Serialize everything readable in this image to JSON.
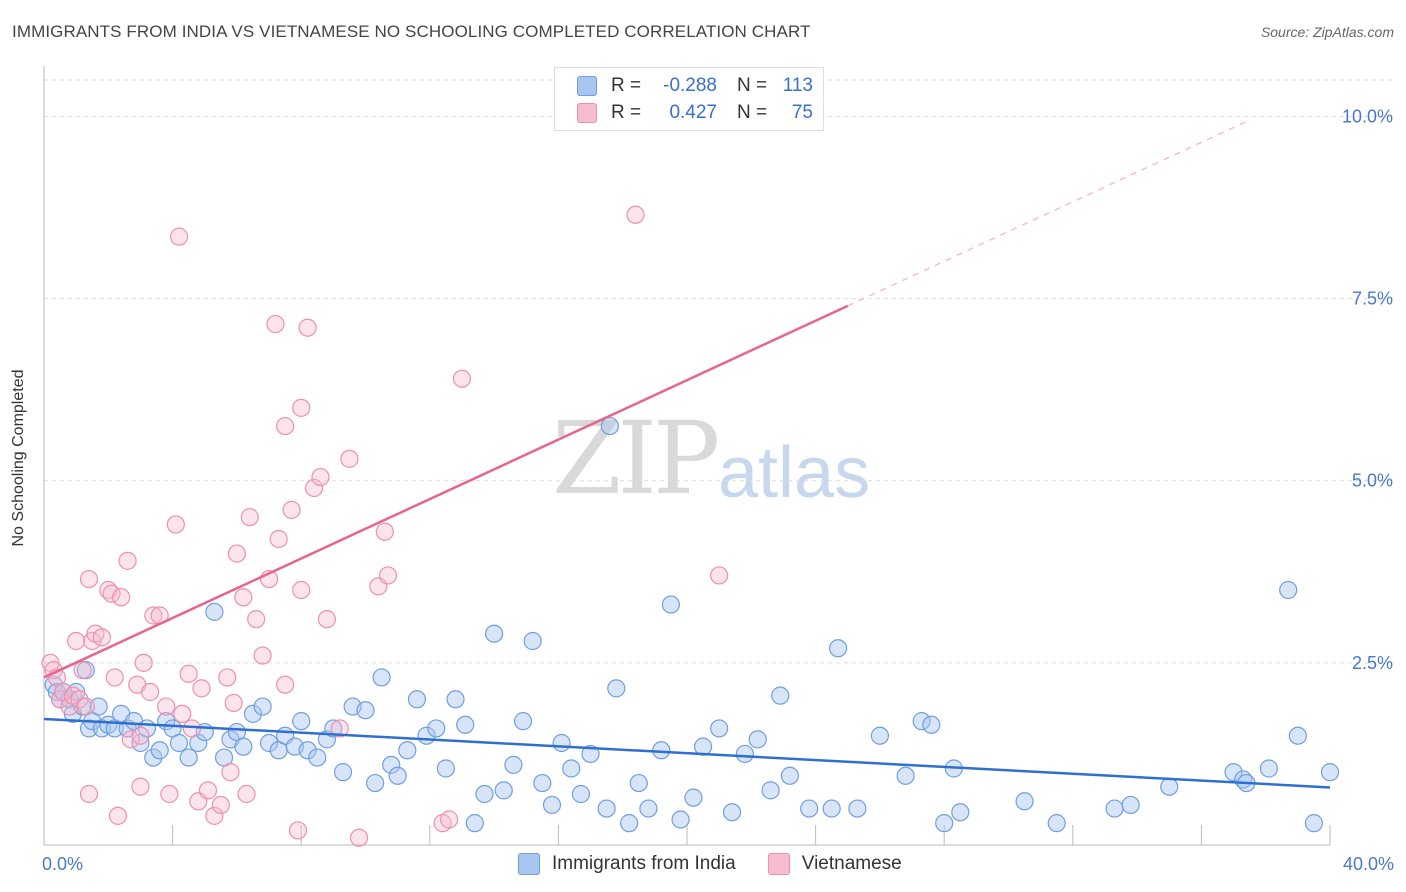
{
  "title": "IMMIGRANTS FROM INDIA VS VIETNAMESE NO SCHOOLING COMPLETED CORRELATION CHART",
  "source": "Source: ZipAtlas.com",
  "watermark": {
    "zip": "ZIP",
    "atlas": "atlas"
  },
  "legend": {
    "rows": [
      {
        "r_label": "R =",
        "r_value": "-0.288",
        "n_label": "N =",
        "n_value": "113"
      },
      {
        "r_label": "R =",
        "r_value": "0.427",
        "n_label": "N =",
        "n_value": "75"
      }
    ]
  },
  "bottom_legend": [
    "Immigrants from India",
    "Vietnamese"
  ],
  "chart_data": {
    "type": "scatter",
    "ylabel": "No Schooling Completed",
    "xlim": [
      0,
      40
    ],
    "ylim": [
      0,
      10.5
    ],
    "x_tick_labels": [
      {
        "v": 0,
        "label": "0.0%"
      },
      {
        "v": 40,
        "label": "40.0%"
      }
    ],
    "y_ticks": [
      {
        "v": 2.5,
        "label": "2.5%"
      },
      {
        "v": 5.0,
        "label": "5.0%"
      },
      {
        "v": 7.5,
        "label": "7.5%"
      },
      {
        "v": 10.0,
        "label": "10.0%"
      }
    ],
    "grid": true,
    "colors": {
      "india_fill": "#a9c6f0",
      "india_stroke": "#6f9fe0",
      "india_line": "#2f6fcf",
      "viet_fill": "#f6bcd0",
      "viet_stroke": "#ee8fb0",
      "viet_line": "#e8648f"
    },
    "series": [
      {
        "name": "Immigrants from India",
        "trend": {
          "x": [
            0,
            40
          ],
          "y": [
            1.73,
            0.79
          ]
        },
        "points": [
          [
            0.3,
            2.2
          ],
          [
            0.4,
            2.1
          ],
          [
            0.5,
            2.0
          ],
          [
            0.6,
            2.1
          ],
          [
            0.8,
            2.0
          ],
          [
            0.9,
            1.8
          ],
          [
            1.0,
            2.1
          ],
          [
            1.2,
            1.9
          ],
          [
            1.3,
            2.4
          ],
          [
            1.4,
            1.6
          ],
          [
            1.5,
            1.7
          ],
          [
            1.7,
            1.9
          ],
          [
            1.8,
            1.6
          ],
          [
            2.0,
            1.65
          ],
          [
            2.2,
            1.6
          ],
          [
            2.4,
            1.8
          ],
          [
            2.6,
            1.6
          ],
          [
            2.8,
            1.7
          ],
          [
            3.0,
            1.4
          ],
          [
            3.2,
            1.6
          ],
          [
            3.4,
            1.2
          ],
          [
            3.6,
            1.3
          ],
          [
            3.8,
            1.7
          ],
          [
            4.0,
            1.6
          ],
          [
            4.2,
            1.4
          ],
          [
            4.5,
            1.2
          ],
          [
            4.8,
            1.4
          ],
          [
            5.0,
            1.55
          ],
          [
            5.3,
            3.2
          ],
          [
            5.6,
            1.2
          ],
          [
            5.8,
            1.45
          ],
          [
            6.0,
            1.55
          ],
          [
            6.2,
            1.35
          ],
          [
            6.5,
            1.8
          ],
          [
            6.8,
            1.9
          ],
          [
            7.0,
            1.4
          ],
          [
            7.3,
            1.3
          ],
          [
            7.5,
            1.5
          ],
          [
            7.8,
            1.35
          ],
          [
            8.0,
            1.7
          ],
          [
            8.2,
            1.3
          ],
          [
            8.5,
            1.2
          ],
          [
            8.8,
            1.45
          ],
          [
            9.0,
            1.6
          ],
          [
            9.3,
            1.0
          ],
          [
            9.6,
            1.9
          ],
          [
            10.0,
            1.85
          ],
          [
            10.3,
            0.85
          ],
          [
            10.5,
            2.3
          ],
          [
            10.8,
            1.1
          ],
          [
            11.0,
            0.95
          ],
          [
            11.3,
            1.3
          ],
          [
            11.6,
            2.0
          ],
          [
            11.9,
            1.5
          ],
          [
            12.2,
            1.6
          ],
          [
            12.5,
            1.05
          ],
          [
            12.8,
            2.0
          ],
          [
            13.1,
            1.65
          ],
          [
            13.4,
            0.3
          ],
          [
            13.7,
            0.7
          ],
          [
            14.0,
            2.9
          ],
          [
            14.3,
            0.75
          ],
          [
            14.6,
            1.1
          ],
          [
            14.9,
            1.7
          ],
          [
            15.2,
            2.8
          ],
          [
            15.5,
            0.85
          ],
          [
            15.8,
            0.55
          ],
          [
            16.1,
            1.4
          ],
          [
            16.4,
            1.05
          ],
          [
            16.7,
            0.7
          ],
          [
            17.0,
            1.25
          ],
          [
            17.5,
            0.5
          ],
          [
            17.8,
            2.15
          ],
          [
            18.2,
            0.3
          ],
          [
            18.5,
            0.85
          ],
          [
            18.8,
            0.5
          ],
          [
            19.2,
            1.3
          ],
          [
            19.5,
            3.3
          ],
          [
            19.8,
            0.35
          ],
          [
            20.2,
            0.65
          ],
          [
            20.5,
            1.35
          ],
          [
            21.0,
            1.6
          ],
          [
            21.4,
            0.45
          ],
          [
            21.8,
            1.25
          ],
          [
            22.2,
            1.45
          ],
          [
            22.6,
            0.75
          ],
          [
            22.9,
            2.05
          ],
          [
            23.2,
            0.95
          ],
          [
            23.8,
            0.5
          ],
          [
            24.5,
            0.5
          ],
          [
            24.7,
            2.7
          ],
          [
            25.3,
            0.5
          ],
          [
            26.0,
            1.5
          ],
          [
            26.8,
            0.95
          ],
          [
            27.3,
            1.7
          ],
          [
            27.6,
            1.65
          ],
          [
            28.0,
            0.3
          ],
          [
            28.3,
            1.05
          ],
          [
            28.5,
            0.45
          ],
          [
            30.5,
            0.6
          ],
          [
            31.5,
            0.3
          ],
          [
            33.3,
            0.5
          ],
          [
            33.8,
            0.55
          ],
          [
            35.0,
            0.8
          ],
          [
            37.0,
            1.0
          ],
          [
            37.3,
            0.9
          ],
          [
            37.4,
            0.85
          ],
          [
            38.1,
            1.05
          ],
          [
            38.7,
            3.5
          ],
          [
            39.0,
            1.5
          ],
          [
            39.5,
            0.3
          ],
          [
            40.0,
            1.0
          ],
          [
            17.6,
            5.75
          ]
        ]
      },
      {
        "name": "Vietnamese",
        "trend": {
          "x": [
            0,
            25
          ],
          "y": [
            2.3,
            7.4
          ]
        },
        "trend_dashed": {
          "x": [
            25,
            37.5
          ],
          "y": [
            7.4,
            9.95
          ]
        },
        "points": [
          [
            0.2,
            2.5
          ],
          [
            0.3,
            2.4
          ],
          [
            0.4,
            2.3
          ],
          [
            0.5,
            2.0
          ],
          [
            0.6,
            2.1
          ],
          [
            0.8,
            1.9
          ],
          [
            0.9,
            2.05
          ],
          [
            1.0,
            2.8
          ],
          [
            1.1,
            2.0
          ],
          [
            1.2,
            2.4
          ],
          [
            1.3,
            1.9
          ],
          [
            1.4,
            3.65
          ],
          [
            1.5,
            2.8
          ],
          [
            1.6,
            2.9
          ],
          [
            1.8,
            2.85
          ],
          [
            2.0,
            3.5
          ],
          [
            2.1,
            3.45
          ],
          [
            2.2,
            2.3
          ],
          [
            2.4,
            3.4
          ],
          [
            2.6,
            3.9
          ],
          [
            2.7,
            1.45
          ],
          [
            2.9,
            2.2
          ],
          [
            3.0,
            1.5
          ],
          [
            3.1,
            2.5
          ],
          [
            3.3,
            2.1
          ],
          [
            3.4,
            3.15
          ],
          [
            3.6,
            3.15
          ],
          [
            3.8,
            1.9
          ],
          [
            3.9,
            0.7
          ],
          [
            4.1,
            4.4
          ],
          [
            4.2,
            8.35
          ],
          [
            4.3,
            1.8
          ],
          [
            4.5,
            2.35
          ],
          [
            4.6,
            1.6
          ],
          [
            4.8,
            0.6
          ],
          [
            4.9,
            2.15
          ],
          [
            5.1,
            0.75
          ],
          [
            5.3,
            0.4
          ],
          [
            5.5,
            0.55
          ],
          [
            5.7,
            2.3
          ],
          [
            5.9,
            1.95
          ],
          [
            6.0,
            4.0
          ],
          [
            6.2,
            3.4
          ],
          [
            6.4,
            4.5
          ],
          [
            6.6,
            3.1
          ],
          [
            6.8,
            2.6
          ],
          [
            7.0,
            3.65
          ],
          [
            7.2,
            7.15
          ],
          [
            7.3,
            4.2
          ],
          [
            7.5,
            2.2
          ],
          [
            7.7,
            4.6
          ],
          [
            7.9,
            0.2
          ],
          [
            8.0,
            3.5
          ],
          [
            8.2,
            7.1
          ],
          [
            8.4,
            4.9
          ],
          [
            8.6,
            5.05
          ],
          [
            8.8,
            3.1
          ],
          [
            9.2,
            1.6
          ],
          [
            9.5,
            5.3
          ],
          [
            9.8,
            0.1
          ],
          [
            10.4,
            3.55
          ],
          [
            10.6,
            4.3
          ],
          [
            10.7,
            3.7
          ],
          [
            12.4,
            0.3
          ],
          [
            12.6,
            0.35
          ],
          [
            13.0,
            6.4
          ],
          [
            18.4,
            8.65
          ],
          [
            21.0,
            3.7
          ],
          [
            1.4,
            0.7
          ],
          [
            2.3,
            0.4
          ],
          [
            3.0,
            0.8
          ],
          [
            5.8,
            1.0
          ],
          [
            6.3,
            0.7
          ],
          [
            7.5,
            5.75
          ],
          [
            8.0,
            6.0
          ]
        ]
      }
    ]
  }
}
